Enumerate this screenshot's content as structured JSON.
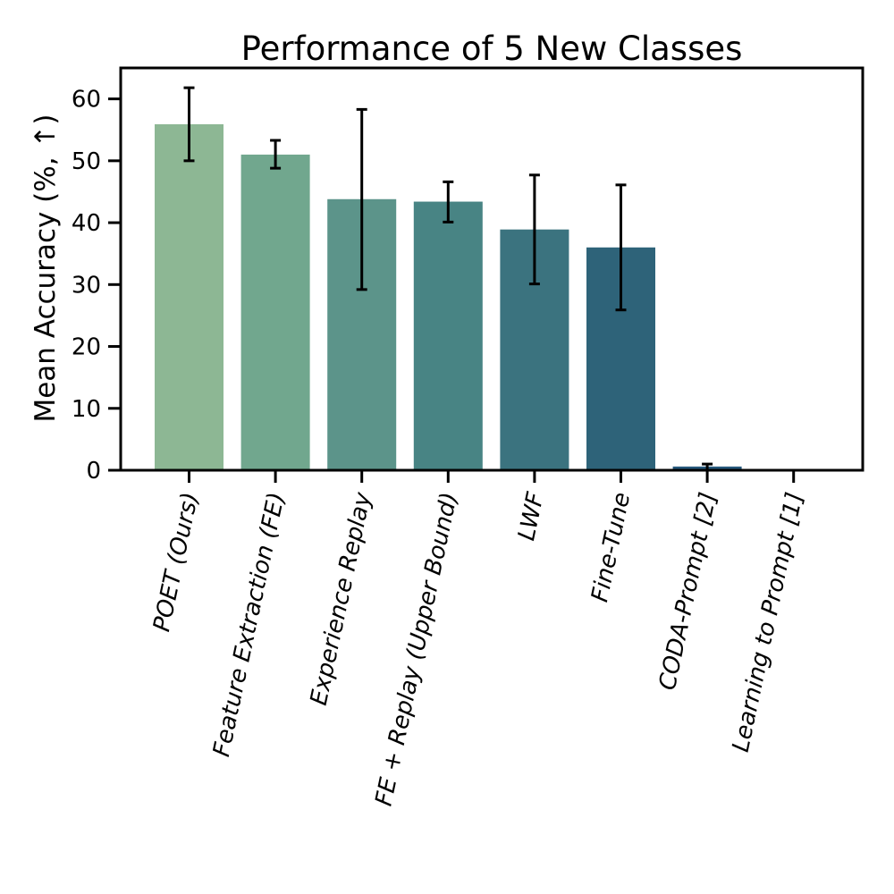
{
  "chart_data": {
    "type": "bar",
    "title": "Performance of 5 New Classes",
    "xlabel": "",
    "ylabel": "Mean Accuracy (%, ↑)",
    "ylim": [
      0,
      65
    ],
    "yticks": [
      0,
      10,
      20,
      30,
      40,
      50,
      60
    ],
    "grid": false,
    "categories": [
      "POET (Ours)",
      "Feature Extraction (FE)",
      "Experience Replay",
      "FE + Replay (Upper Bound)",
      "LWF",
      "Fine-Tune",
      "CODA-Prompt [2]",
      "Learning to Prompt [1]"
    ],
    "values": [
      55.9,
      51.0,
      43.8,
      43.4,
      38.9,
      36.0,
      0.6,
      0.0
    ],
    "error_low": [
      50.0,
      48.8,
      29.2,
      40.1,
      30.1,
      25.9,
      0.0,
      0.0
    ],
    "error_high": [
      61.8,
      53.3,
      58.3,
      46.6,
      47.7,
      46.1,
      1.0,
      0.0
    ],
    "colors": [
      "#8db794",
      "#71a78e",
      "#5c948a",
      "#488484",
      "#3b737f",
      "#2e6379",
      "#25577b",
      "#1d4a6f"
    ]
  }
}
